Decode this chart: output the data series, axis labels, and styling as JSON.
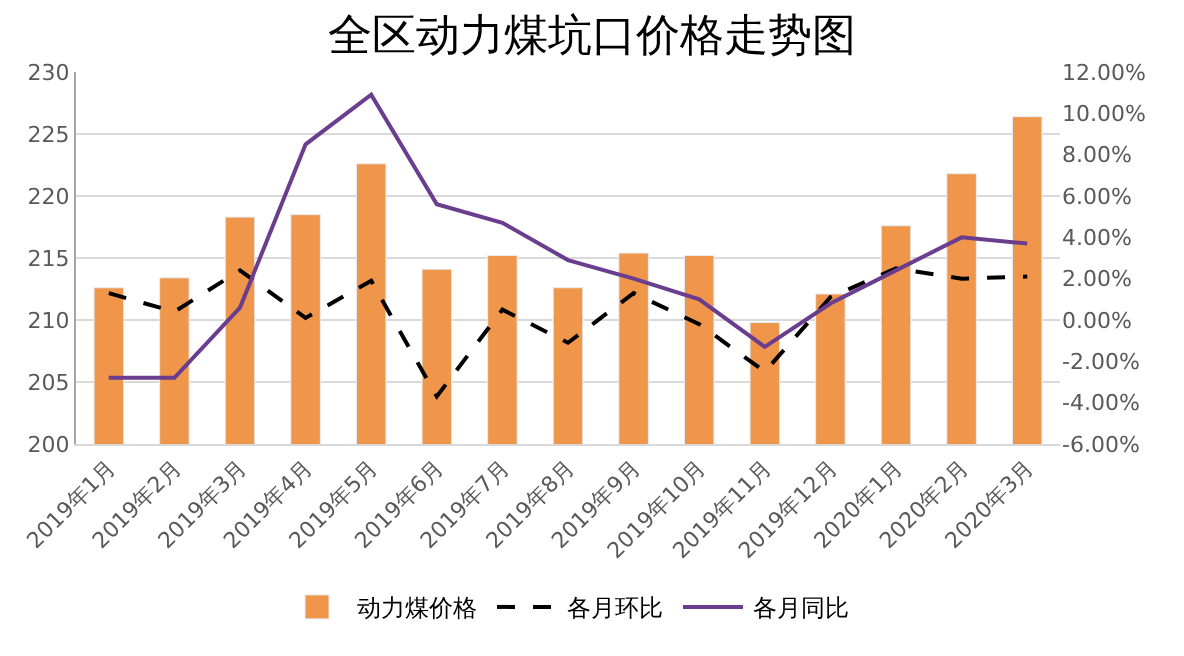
{
  "chart_data": {
    "type": "bar",
    "title": "全区动力煤坑口价格走势图",
    "categories": [
      "2019年1月",
      "2019年2月",
      "2019年3月",
      "2019年4月",
      "2019年5月",
      "2019年6月",
      "2019年7月",
      "2019年8月",
      "2019年9月",
      "2019年10月",
      "2019年11月",
      "2019年12月",
      "2020年1月",
      "2020年2月",
      "2020年3月"
    ],
    "series": [
      {
        "name": "动力煤价格",
        "color": "#f0964a",
        "values": [
          212.6,
          213.4,
          218.3,
          218.5,
          222.6,
          214.1,
          215.2,
          212.6,
          215.4,
          215.2,
          209.8,
          212.1,
          217.6,
          221.8,
          226.4
        ]
      },
      {
        "name": "各月环比",
        "type": "line",
        "axis": "y2",
        "color": "#000000",
        "line_style": "dashed",
        "values": [
          1.3,
          0.4,
          2.4,
          0.1,
          1.9,
          -3.7,
          0.5,
          -1.1,
          1.3,
          -0.2,
          -2.5,
          1.1,
          2.5,
          2.0,
          2.1
        ]
      },
      {
        "name": "各月同比",
        "type": "line",
        "axis": "y2",
        "color": "#6a3d8f",
        "line_style": "solid",
        "values": [
          -2.8,
          -2.8,
          0.6,
          8.5,
          10.9,
          5.6,
          4.7,
          2.9,
          2.0,
          1.0,
          -1.3,
          0.8,
          2.4,
          4.0,
          3.7
        ]
      }
    ],
    "ylim": [
      200,
      230
    ],
    "yticks": [
      200,
      205,
      210,
      215,
      220,
      225,
      230
    ],
    "y2lim": [
      -6,
      12
    ],
    "y2ticks": [
      {
        "value": -6,
        "label": "-6.00%"
      },
      {
        "value": -4,
        "label": "-4.00%"
      },
      {
        "value": -2,
        "label": "-2.00%"
      },
      {
        "value": 0,
        "label": "0.00%"
      },
      {
        "value": 2,
        "label": "2.00%"
      },
      {
        "value": 4,
        "label": "4.00%"
      },
      {
        "value": 6,
        "label": "6.00%"
      },
      {
        "value": 8,
        "label": "8.00%"
      },
      {
        "value": 10,
        "label": "10.00%"
      },
      {
        "value": 12,
        "label": "12.00%"
      }
    ],
    "grid": "y",
    "legend": "bottom",
    "marker": "none"
  }
}
